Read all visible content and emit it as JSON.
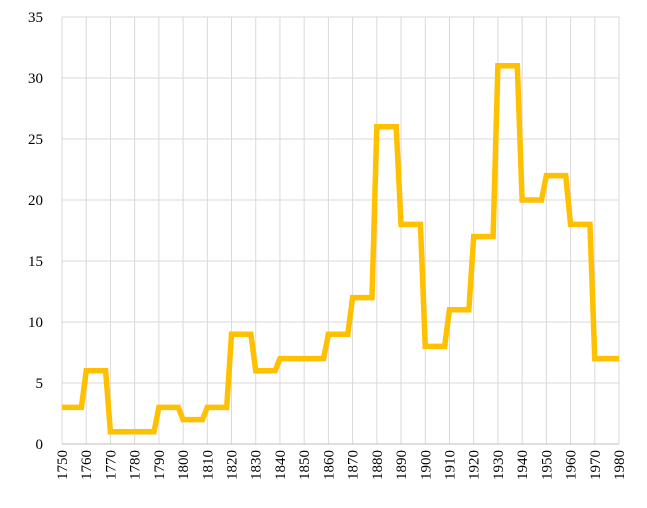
{
  "chart_data": {
    "type": "line",
    "title": "",
    "xlabel": "",
    "ylabel": "",
    "xlim": [
      1750,
      1980
    ],
    "ylim": [
      0,
      35
    ],
    "x_ticks": [
      1750,
      1760,
      1770,
      1780,
      1790,
      1800,
      1810,
      1820,
      1830,
      1840,
      1850,
      1860,
      1870,
      1880,
      1890,
      1900,
      1910,
      1920,
      1930,
      1940,
      1950,
      1960,
      1970,
      1980
    ],
    "y_ticks": [
      0,
      5,
      10,
      15,
      20,
      25,
      30,
      35
    ],
    "grid": true,
    "legend": "none",
    "series": [
      {
        "color": "#FFC000",
        "points": [
          [
            1750,
            3
          ],
          [
            1758,
            3
          ],
          [
            1760,
            6
          ],
          [
            1768,
            6
          ],
          [
            1770,
            1
          ],
          [
            1778,
            1
          ],
          [
            1780,
            1
          ],
          [
            1788,
            1
          ],
          [
            1790,
            3
          ],
          [
            1798,
            3
          ],
          [
            1800,
            2
          ],
          [
            1808,
            2
          ],
          [
            1810,
            3
          ],
          [
            1818,
            3
          ],
          [
            1820,
            9
          ],
          [
            1828,
            9
          ],
          [
            1830,
            6
          ],
          [
            1838,
            6
          ],
          [
            1840,
            7
          ],
          [
            1848,
            7
          ],
          [
            1850,
            7
          ],
          [
            1858,
            7
          ],
          [
            1860,
            9
          ],
          [
            1868,
            9
          ],
          [
            1870,
            12
          ],
          [
            1878,
            12
          ],
          [
            1880,
            26
          ],
          [
            1888,
            26
          ],
          [
            1890,
            18
          ],
          [
            1898,
            18
          ],
          [
            1900,
            8
          ],
          [
            1908,
            8
          ],
          [
            1910,
            11
          ],
          [
            1918,
            11
          ],
          [
            1920,
            17
          ],
          [
            1928,
            17
          ],
          [
            1930,
            31
          ],
          [
            1938,
            31
          ],
          [
            1940,
            20
          ],
          [
            1948,
            20
          ],
          [
            1950,
            22
          ],
          [
            1958,
            22
          ],
          [
            1960,
            18
          ],
          [
            1968,
            18
          ],
          [
            1970,
            7
          ],
          [
            1978,
            7
          ],
          [
            1980,
            7
          ]
        ]
      }
    ]
  }
}
